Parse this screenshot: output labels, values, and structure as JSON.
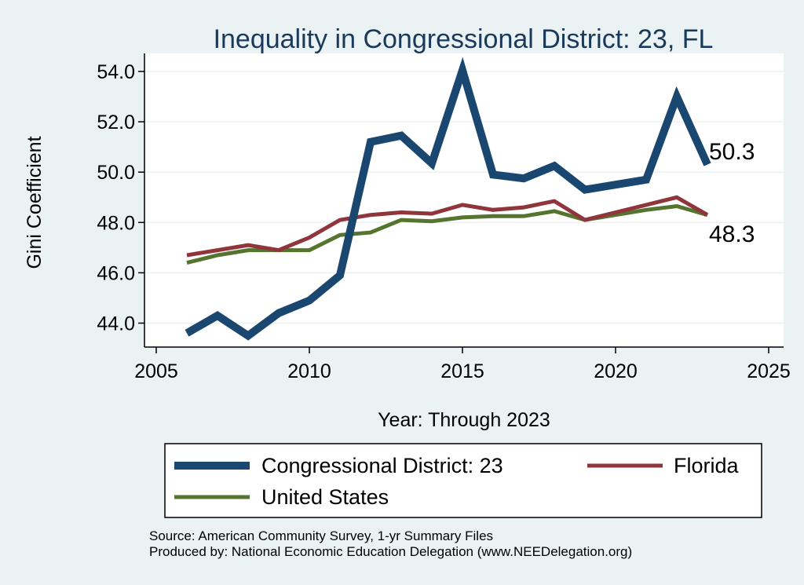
{
  "chart_data": {
    "type": "line",
    "title": "Inequality in Congressional District:  23, FL",
    "xlabel": "Year: Through 2023",
    "ylabel": "Gini Coefficient",
    "xlim": [
      2005,
      2025
    ],
    "ylim": [
      43.0,
      54.5
    ],
    "x_ticks": [
      2005,
      2010,
      2015,
      2020,
      2025
    ],
    "y_ticks": [
      44.0,
      46.0,
      48.0,
      50.0,
      52.0,
      54.0
    ],
    "y_tick_labels": [
      "44.0",
      "46.0",
      "48.0",
      "50.0",
      "52.0",
      "54.0"
    ],
    "x_tick_labels": [
      "2005",
      "2010",
      "2015",
      "2020",
      "2025"
    ],
    "grid": true,
    "x": [
      2006,
      2007,
      2008,
      2009,
      2010,
      2011,
      2012,
      2013,
      2014,
      2015,
      2016,
      2017,
      2018,
      2019,
      2020,
      2021,
      2022,
      2023
    ],
    "series": [
      {
        "name": "Congressional District:  23",
        "color": "#1a476f",
        "values": [
          43.6,
          44.3,
          43.5,
          44.4,
          44.9,
          45.9,
          51.2,
          51.45,
          50.35,
          54.05,
          49.9,
          49.75,
          50.25,
          49.3,
          49.5,
          49.7,
          53.0,
          50.3
        ]
      },
      {
        "name": "Florida",
        "color": "#90353b",
        "values": [
          46.7,
          46.9,
          47.1,
          46.9,
          47.4,
          48.1,
          48.3,
          48.4,
          48.35,
          48.7,
          48.5,
          48.6,
          48.85,
          48.1,
          48.4,
          48.7,
          49.0,
          48.3
        ]
      },
      {
        "name": "United States",
        "color": "#55752f",
        "values": [
          46.4,
          46.7,
          46.9,
          46.9,
          46.9,
          47.5,
          47.6,
          48.1,
          48.05,
          48.2,
          48.25,
          48.25,
          48.45,
          48.1,
          48.3,
          48.5,
          48.65,
          48.3
        ]
      }
    ],
    "end_labels": [
      "50.3",
      "48.3"
    ],
    "legend": {
      "placement": "bottom",
      "items": [
        "Congressional District:  23",
        "Florida",
        "United States"
      ]
    },
    "annotations": [
      "Source: American Community Survey, 1-yr Summary Files",
      "Produced by: National Economic Education Delegation (www.NEEDelegation.org)"
    ]
  }
}
